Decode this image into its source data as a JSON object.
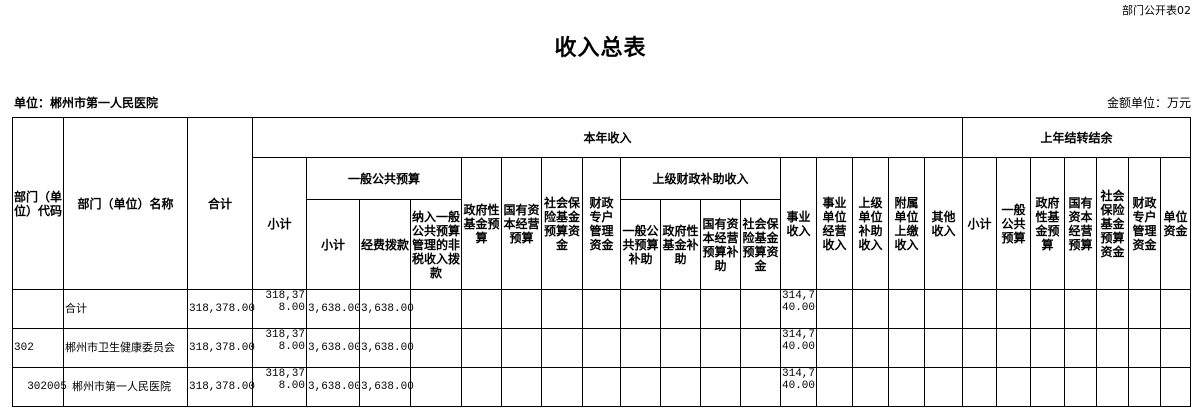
{
  "form_no": "部门公开表02",
  "title": "收入总表",
  "unit_label": "单位：郴州市第一人民医院",
  "money_unit": "金额单位：万元",
  "headers": {
    "dept_code": "部门（单位）代码",
    "dept_name": "部门（单位）名称",
    "total": "合计",
    "current_year": "本年收入",
    "prior_year": "上年结转结余",
    "cy_subtotal": "小计",
    "general_budget": "一般公共预算",
    "gb_subtotal": "小计",
    "gb_appropriation": "经费拨款",
    "gb_nontax": "纳入一般公共预算管理的非税收入拨款",
    "gov_fund": "政府性基金预算",
    "state_capital": "国有资本经营预算",
    "social_insurance": "社会保险基金预算资金",
    "fiscal_account": "财政专户管理资金",
    "superior_subsidy": "上级财政补助收入",
    "ss_general": "一般公共预算补助",
    "ss_gov_fund": "政府性基金补助",
    "ss_state_capital": "国有资本经营预算补助",
    "ss_social": "社会保险基金预算资金",
    "business_income": "事业收入",
    "operating_income": "事业单位经营收入",
    "superior_unit_subsidy": "上级单位补助收入",
    "affiliated_income": "附属单位上缴收入",
    "other_income": "其他收入",
    "py_subtotal": "小计",
    "py_general": "一般公共预算",
    "py_gov_fund": "政府性基金预算",
    "py_state_capital": "国有资本经营预算",
    "py_social": "社会保险基金预算资金",
    "py_fiscal_account": "财政专户管理资金",
    "py_unit_fund": "单位资金"
  },
  "rows": [
    [
      "",
      "合计",
      "318,378.00",
      "318,378.00",
      "3,638.00",
      "3,638.00",
      "",
      "",
      "",
      "",
      "",
      "",
      "",
      "",
      "",
      "314,740.00",
      "",
      "",
      "",
      "",
      "",
      "",
      "",
      "",
      "",
      "",
      ""
    ],
    [
      "302",
      "郴州市卫生健康委员会",
      "318,378.00",
      "318,378.00",
      "3,638.00",
      "3,638.00",
      "",
      "",
      "",
      "",
      "",
      "",
      "",
      "",
      "",
      "314,740.00",
      "",
      "",
      "",
      "",
      "",
      "",
      "",
      "",
      "",
      "",
      ""
    ],
    [
      "  302005",
      "  郴州市第一人民医院",
      "318,378.00",
      "318,378.00",
      "3,638.00",
      "3,638.00",
      "",
      "",
      "",
      "",
      "",
      "",
      "",
      "",
      "",
      "314,740.00",
      "",
      "",
      "",
      "",
      "",
      "",
      "",
      "",
      "",
      "",
      ""
    ]
  ]
}
